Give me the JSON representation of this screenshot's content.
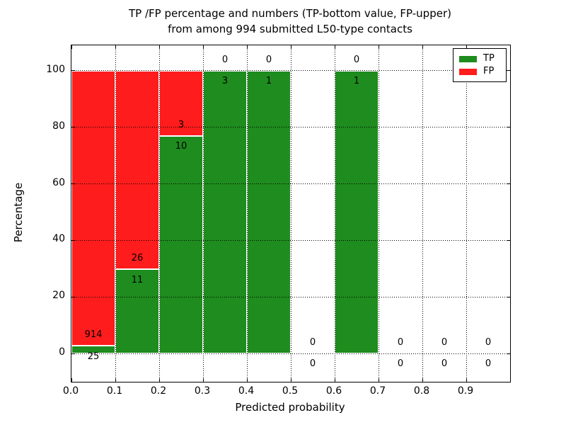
{
  "chart_data": {
    "type": "bar",
    "stacked": true,
    "title_lines": [
      "TP /FP percentage and numbers (TP-bottom value, FP-upper)",
      "from among 994 submitted L50-type contacts"
    ],
    "xlabel": "Predicted probability",
    "ylabel": "Percentage",
    "xlim": [
      0.0,
      1.0
    ],
    "ylim": [
      -10,
      109
    ],
    "xtick_labels": [
      "0.0",
      "0.1",
      "0.2",
      "0.3",
      "0.4",
      "0.5",
      "0.6",
      "0.7",
      "0.8",
      "0.9"
    ],
    "xtick_values": [
      0.0,
      0.1,
      0.2,
      0.3,
      0.4,
      0.5,
      0.6,
      0.7,
      0.8,
      0.9
    ],
    "ytick_values": [
      0,
      20,
      40,
      60,
      80,
      100
    ],
    "grid": "dotted",
    "legend_position": "upper right",
    "series": [
      {
        "name": "TP",
        "color": "#1e8c1e"
      },
      {
        "name": "FP",
        "color": "#ff1c1c"
      }
    ],
    "bins": [
      {
        "range": "0.0-0.1",
        "x0": 0.0,
        "x1": 0.1,
        "tp_count": 25,
        "fp_count": 914,
        "tp_pct": 2.66,
        "fp_pct": 97.34,
        "bar": true
      },
      {
        "range": "0.1-0.2",
        "x0": 0.1,
        "x1": 0.2,
        "tp_count": 11,
        "fp_count": 26,
        "tp_pct": 29.73,
        "fp_pct": 70.27,
        "bar": true
      },
      {
        "range": "0.2-0.3",
        "x0": 0.2,
        "x1": 0.3,
        "tp_count": 10,
        "fp_count": 3,
        "tp_pct": 76.92,
        "fp_pct": 23.08,
        "bar": true
      },
      {
        "range": "0.3-0.4",
        "x0": 0.3,
        "x1": 0.4,
        "tp_count": 3,
        "fp_count": 0,
        "tp_pct": 100,
        "fp_pct": 0,
        "bar": true
      },
      {
        "range": "0.4-0.5",
        "x0": 0.4,
        "x1": 0.5,
        "tp_count": 1,
        "fp_count": 0,
        "tp_pct": 100,
        "fp_pct": 0,
        "bar": true
      },
      {
        "range": "0.5-0.6",
        "x0": 0.5,
        "x1": 0.6,
        "tp_count": 0,
        "fp_count": 0,
        "tp_pct": 0,
        "fp_pct": 0,
        "bar": false
      },
      {
        "range": "0.6-0.7",
        "x0": 0.6,
        "x1": 0.7,
        "tp_count": 1,
        "fp_count": 0,
        "tp_pct": 100,
        "fp_pct": 0,
        "bar": true
      },
      {
        "range": "0.7-0.8",
        "x0": 0.7,
        "x1": 0.8,
        "tp_count": 0,
        "fp_count": 0,
        "tp_pct": 0,
        "fp_pct": 0,
        "bar": false
      },
      {
        "range": "0.8-0.9",
        "x0": 0.8,
        "x1": 0.9,
        "tp_count": 0,
        "fp_count": 0,
        "tp_pct": 0,
        "fp_pct": 0,
        "bar": false
      },
      {
        "range": "0.9-1.0",
        "x0": 0.9,
        "x1": 1.0,
        "tp_count": 0,
        "fp_count": 0,
        "tp_pct": 0,
        "fp_pct": 0,
        "bar": false
      }
    ]
  }
}
